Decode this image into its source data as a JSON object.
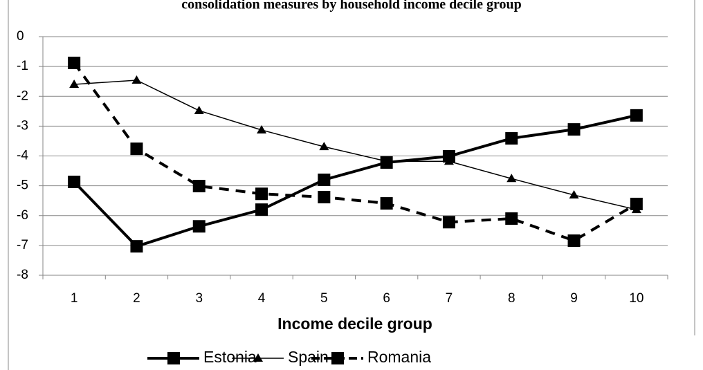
{
  "chart_data": {
    "type": "line",
    "title": "consolidation measures by household income decile group",
    "x_label": "Income decile group",
    "categories": [
      "1",
      "2",
      "3",
      "4",
      "5",
      "6",
      "7",
      "8",
      "9",
      "10"
    ],
    "ylim": [
      -8,
      0
    ],
    "yticks": [
      0,
      -1,
      -2,
      -3,
      -4,
      -5,
      -6,
      -7,
      -8
    ],
    "grid": true,
    "legend": "bottom",
    "series": [
      {
        "name": "Estonia",
        "color": "#000000",
        "line_style": "solid",
        "marker": "square",
        "values": [
          -4.87,
          -7.03,
          -6.36,
          -5.8,
          -4.8,
          -4.22,
          -4.01,
          -3.41,
          -3.11,
          -2.64
        ]
      },
      {
        "name": "Spain",
        "color": "#000000",
        "line_style": "thin",
        "marker": "triangle",
        "values": [
          -1.6,
          -1.46,
          -2.48,
          -3.13,
          -3.69,
          -4.18,
          -4.18,
          -4.76,
          -5.31,
          -5.8
        ]
      },
      {
        "name": "Romania",
        "color": "#000000",
        "line_style": "dashed",
        "marker": "square",
        "values": [
          -0.88,
          -3.76,
          -5.01,
          -5.27,
          -5.38,
          -5.59,
          -6.22,
          -6.1,
          -6.84,
          -5.61
        ]
      }
    ]
  }
}
